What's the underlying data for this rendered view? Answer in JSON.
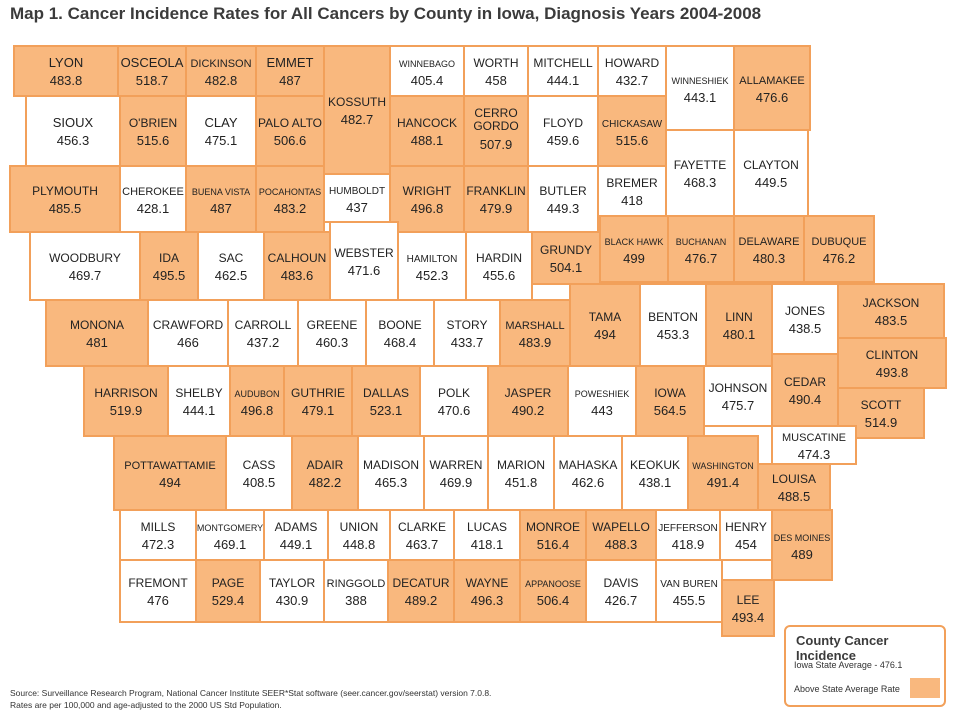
{
  "title": "Map 1.  Cancer Incidence Rates for All Cancers by County in Iowa, Diagnosis Years 2004-2008",
  "colors": {
    "above": "#f9b87e",
    "below": "#ffffff",
    "border": "#f2a05a"
  },
  "legend": {
    "title": "County Cancer Incidence",
    "average": "Iowa State Average - 476.1",
    "swatch_label": "Above State Average Rate"
  },
  "source_line1": "Source: Surveillance Research Program, National Cancer Institute SEER*Stat software (seer.cancer.gov/seerstat) version 7.0.8.",
  "source_line2": "Rates are per 100,000 and age-adjusted to the 2000 US Std Population.",
  "counties": [
    {
      "name": "LYON",
      "value": "483.8",
      "above": true
    },
    {
      "name": "OSCEOLA",
      "value": "518.7",
      "above": true
    },
    {
      "name": "DICKINSON",
      "value": "482.8",
      "above": true
    },
    {
      "name": "EMMET",
      "value": "487",
      "above": true
    },
    {
      "name": "KOSSUTH",
      "value": "482.7",
      "above": true
    },
    {
      "name": "WINNEBAGO",
      "value": "405.4",
      "above": false
    },
    {
      "name": "WORTH",
      "value": "458",
      "above": false
    },
    {
      "name": "MITCHELL",
      "value": "444.1",
      "above": false
    },
    {
      "name": "HOWARD",
      "value": "432.7",
      "above": false
    },
    {
      "name": "WINNESHIEK",
      "value": "443.1",
      "above": false
    },
    {
      "name": "ALLAMAKEE",
      "value": "476.6",
      "above": true
    },
    {
      "name": "SIOUX",
      "value": "456.3",
      "above": false
    },
    {
      "name": "O'BRIEN",
      "value": "515.6",
      "above": true
    },
    {
      "name": "CLAY",
      "value": "475.1",
      "above": false
    },
    {
      "name": "PALO ALTO",
      "value": "506.6",
      "above": true
    },
    {
      "name": "HANCOCK",
      "value": "488.1",
      "above": true
    },
    {
      "name": "CERRO GORDO",
      "value": "507.9",
      "above": true
    },
    {
      "name": "FLOYD",
      "value": "459.6",
      "above": false
    },
    {
      "name": "CHICKASAW",
      "value": "515.6",
      "above": true
    },
    {
      "name": "FAYETTE",
      "value": "468.3",
      "above": false
    },
    {
      "name": "CLAYTON",
      "value": "449.5",
      "above": false
    },
    {
      "name": "PLYMOUTH",
      "value": "485.5",
      "above": true
    },
    {
      "name": "CHEROKEE",
      "value": "428.1",
      "above": false
    },
    {
      "name": "BUENA VISTA",
      "value": "487",
      "above": true
    },
    {
      "name": "POCAHONTAS",
      "value": "483.2",
      "above": true
    },
    {
      "name": "HUMBOLDT",
      "value": "437",
      "above": false
    },
    {
      "name": "WRIGHT",
      "value": "496.8",
      "above": true
    },
    {
      "name": "FRANKLIN",
      "value": "479.9",
      "above": true
    },
    {
      "name": "BUTLER",
      "value": "449.3",
      "above": false
    },
    {
      "name": "BREMER",
      "value": "418",
      "above": false
    },
    {
      "name": "WOODBURY",
      "value": "469.7",
      "above": false
    },
    {
      "name": "IDA",
      "value": "495.5",
      "above": true
    },
    {
      "name": "SAC",
      "value": "462.5",
      "above": false
    },
    {
      "name": "CALHOUN",
      "value": "483.6",
      "above": true
    },
    {
      "name": "WEBSTER",
      "value": "471.6",
      "above": false
    },
    {
      "name": "HAMILTON",
      "value": "452.3",
      "above": false
    },
    {
      "name": "HARDIN",
      "value": "455.6",
      "above": false
    },
    {
      "name": "GRUNDY",
      "value": "504.1",
      "above": true
    },
    {
      "name": "BLACK HAWK",
      "value": "499",
      "above": true
    },
    {
      "name": "BUCHANAN",
      "value": "476.7",
      "above": true
    },
    {
      "name": "DELAWARE",
      "value": "480.3",
      "above": true
    },
    {
      "name": "DUBUQUE",
      "value": "476.2",
      "above": true
    },
    {
      "name": "MONONA",
      "value": "481",
      "above": true
    },
    {
      "name": "CRAWFORD",
      "value": "466",
      "above": false
    },
    {
      "name": "CARROLL",
      "value": "437.2",
      "above": false
    },
    {
      "name": "GREENE",
      "value": "460.3",
      "above": false
    },
    {
      "name": "BOONE",
      "value": "468.4",
      "above": false
    },
    {
      "name": "STORY",
      "value": "433.7",
      "above": false
    },
    {
      "name": "MARSHALL",
      "value": "483.9",
      "above": true
    },
    {
      "name": "TAMA",
      "value": "494",
      "above": true
    },
    {
      "name": "BENTON",
      "value": "453.3",
      "above": false
    },
    {
      "name": "LINN",
      "value": "480.1",
      "above": true
    },
    {
      "name": "JONES",
      "value": "438.5",
      "above": false
    },
    {
      "name": "JACKSON",
      "value": "483.5",
      "above": true
    },
    {
      "name": "CLINTON",
      "value": "493.8",
      "above": true
    },
    {
      "name": "HARRISON",
      "value": "519.9",
      "above": true
    },
    {
      "name": "SHELBY",
      "value": "444.1",
      "above": false
    },
    {
      "name": "AUDUBON",
      "value": "496.8",
      "above": true
    },
    {
      "name": "GUTHRIE",
      "value": "479.1",
      "above": true
    },
    {
      "name": "DALLAS",
      "value": "523.1",
      "above": true
    },
    {
      "name": "POLK",
      "value": "470.6",
      "above": false
    },
    {
      "name": "JASPER",
      "value": "490.2",
      "above": true
    },
    {
      "name": "POWESHIEK",
      "value": "443",
      "above": false
    },
    {
      "name": "IOWA",
      "value": "564.5",
      "above": true
    },
    {
      "name": "JOHNSON",
      "value": "475.7",
      "above": false
    },
    {
      "name": "CEDAR",
      "value": "490.4",
      "above": true
    },
    {
      "name": "SCOTT",
      "value": "514.9",
      "above": true
    },
    {
      "name": "MUSCATINE",
      "value": "474.3",
      "above": false
    },
    {
      "name": "POTTAWATTAMIE",
      "value": "494",
      "above": true
    },
    {
      "name": "CASS",
      "value": "408.5",
      "above": false
    },
    {
      "name": "ADAIR",
      "value": "482.2",
      "above": true
    },
    {
      "name": "MADISON",
      "value": "465.3",
      "above": false
    },
    {
      "name": "WARREN",
      "value": "469.9",
      "above": false
    },
    {
      "name": "MARION",
      "value": "451.8",
      "above": false
    },
    {
      "name": "MAHASKA",
      "value": "462.6",
      "above": false
    },
    {
      "name": "KEOKUK",
      "value": "438.1",
      "above": false
    },
    {
      "name": "WASHINGTON",
      "value": "491.4",
      "above": true
    },
    {
      "name": "LOUISA",
      "value": "488.5",
      "above": true
    },
    {
      "name": "MILLS",
      "value": "472.3",
      "above": false
    },
    {
      "name": "MONTGOMERY",
      "value": "469.1",
      "above": false
    },
    {
      "name": "ADAMS",
      "value": "449.1",
      "above": false
    },
    {
      "name": "UNION",
      "value": "448.8",
      "above": false
    },
    {
      "name": "CLARKE",
      "value": "463.7",
      "above": false
    },
    {
      "name": "LUCAS",
      "value": "418.1",
      "above": false
    },
    {
      "name": "MONROE",
      "value": "516.4",
      "above": true
    },
    {
      "name": "WAPELLO",
      "value": "488.3",
      "above": true
    },
    {
      "name": "JEFFERSON",
      "value": "418.9",
      "above": false
    },
    {
      "name": "HENRY",
      "value": "454",
      "above": false
    },
    {
      "name": "DES MOINES",
      "value": "489",
      "above": true
    },
    {
      "name": "FREMONT",
      "value": "476",
      "above": false
    },
    {
      "name": "PAGE",
      "value": "529.4",
      "above": true
    },
    {
      "name": "TAYLOR",
      "value": "430.9",
      "above": false
    },
    {
      "name": "RINGGOLD",
      "value": "388",
      "above": false
    },
    {
      "name": "DECATUR",
      "value": "489.2",
      "above": true
    },
    {
      "name": "WAYNE",
      "value": "496.3",
      "above": true
    },
    {
      "name": "APPANOOSE",
      "value": "506.4",
      "above": true
    },
    {
      "name": "DAVIS",
      "value": "426.7",
      "above": false
    },
    {
      "name": "VAN BUREN",
      "value": "455.5",
      "above": false
    },
    {
      "name": "LEE",
      "value": "493.4",
      "above": true
    }
  ]
}
